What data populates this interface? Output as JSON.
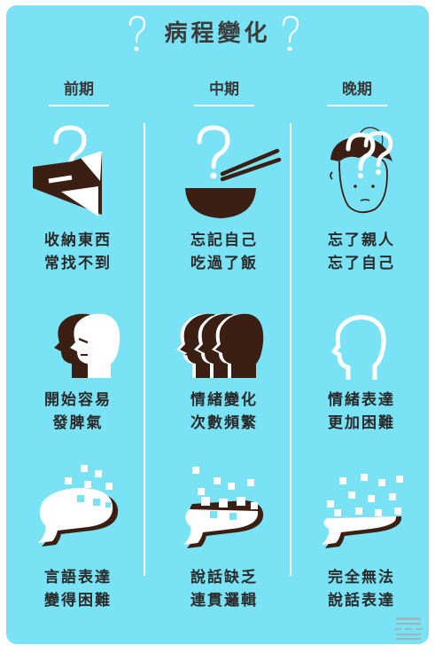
{
  "title": "病程變化",
  "columns": [
    {
      "label": "前期"
    },
    {
      "label": "中期"
    },
    {
      "label": "晚期"
    }
  ],
  "rows": [
    [
      {
        "icon": "box-question-icon",
        "lines": [
          "收納東西",
          "常找不到"
        ]
      },
      {
        "icon": "bowl-chopsticks-question-icon",
        "lines": [
          "忘記自己",
          "吃過了飯"
        ]
      },
      {
        "icon": "confused-face-question-icon",
        "lines": [
          "忘了親人",
          "忘了自己"
        ]
      }
    ],
    [
      {
        "icon": "angry-heads-icon",
        "lines": [
          "開始容易",
          "發脾氣"
        ]
      },
      {
        "icon": "multiple-heads-icon",
        "lines": [
          "情緒變化",
          "次數頻繁"
        ]
      },
      {
        "icon": "empty-head-outline-icon",
        "lines": [
          "情緒表達",
          "更加困難"
        ]
      }
    ],
    [
      {
        "icon": "speech-bubble-scatter-icon",
        "lines": [
          "言語表達",
          "變得困難"
        ]
      },
      {
        "icon": "speech-bubble-fragment-icon",
        "lines": [
          "說話缺乏",
          "連貫邏輯"
        ]
      },
      {
        "icon": "speech-bubble-dissolve-icon",
        "lines": [
          "完全無法",
          "說話表達"
        ]
      }
    ]
  ],
  "colors": {
    "background": "#79e2f4",
    "dark": "#3a1f12",
    "white": "#ffffff"
  }
}
